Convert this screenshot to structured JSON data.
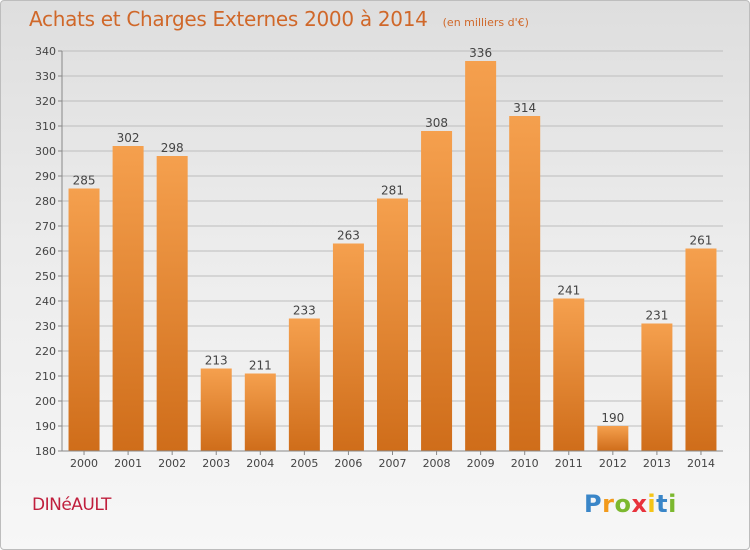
{
  "chart_data": {
    "type": "bar",
    "title": "Achats et Charges Externes 2000 à 2014",
    "subtitle": "(en milliers d'€)",
    "categories": [
      "2000",
      "2001",
      "2002",
      "2003",
      "2004",
      "2005",
      "2006",
      "2007",
      "2008",
      "2009",
      "2010",
      "2011",
      "2012",
      "2013",
      "2014"
    ],
    "values": [
      285,
      302,
      298,
      213,
      211,
      233,
      263,
      281,
      308,
      336,
      314,
      241,
      190,
      231,
      261
    ],
    "ylim": [
      180,
      340
    ],
    "yticks": [
      180,
      190,
      200,
      210,
      220,
      230,
      240,
      250,
      260,
      270,
      280,
      290,
      300,
      310,
      320,
      330,
      340
    ],
    "xlabel": "",
    "ylabel": "",
    "grid": true,
    "bar_color_top": "#f5a04e",
    "bar_color_bottom": "#cf6d1a"
  },
  "footer": {
    "town": "DINéAULT",
    "logo_letters": [
      "P",
      "r",
      "o",
      "x",
      "i",
      "t",
      "i"
    ],
    "logo_colors": [
      "#3a86c8",
      "#f29a1c",
      "#7cb82f",
      "#e8323c",
      "#f5c518",
      "#3a86c8",
      "#7cb82f"
    ]
  }
}
